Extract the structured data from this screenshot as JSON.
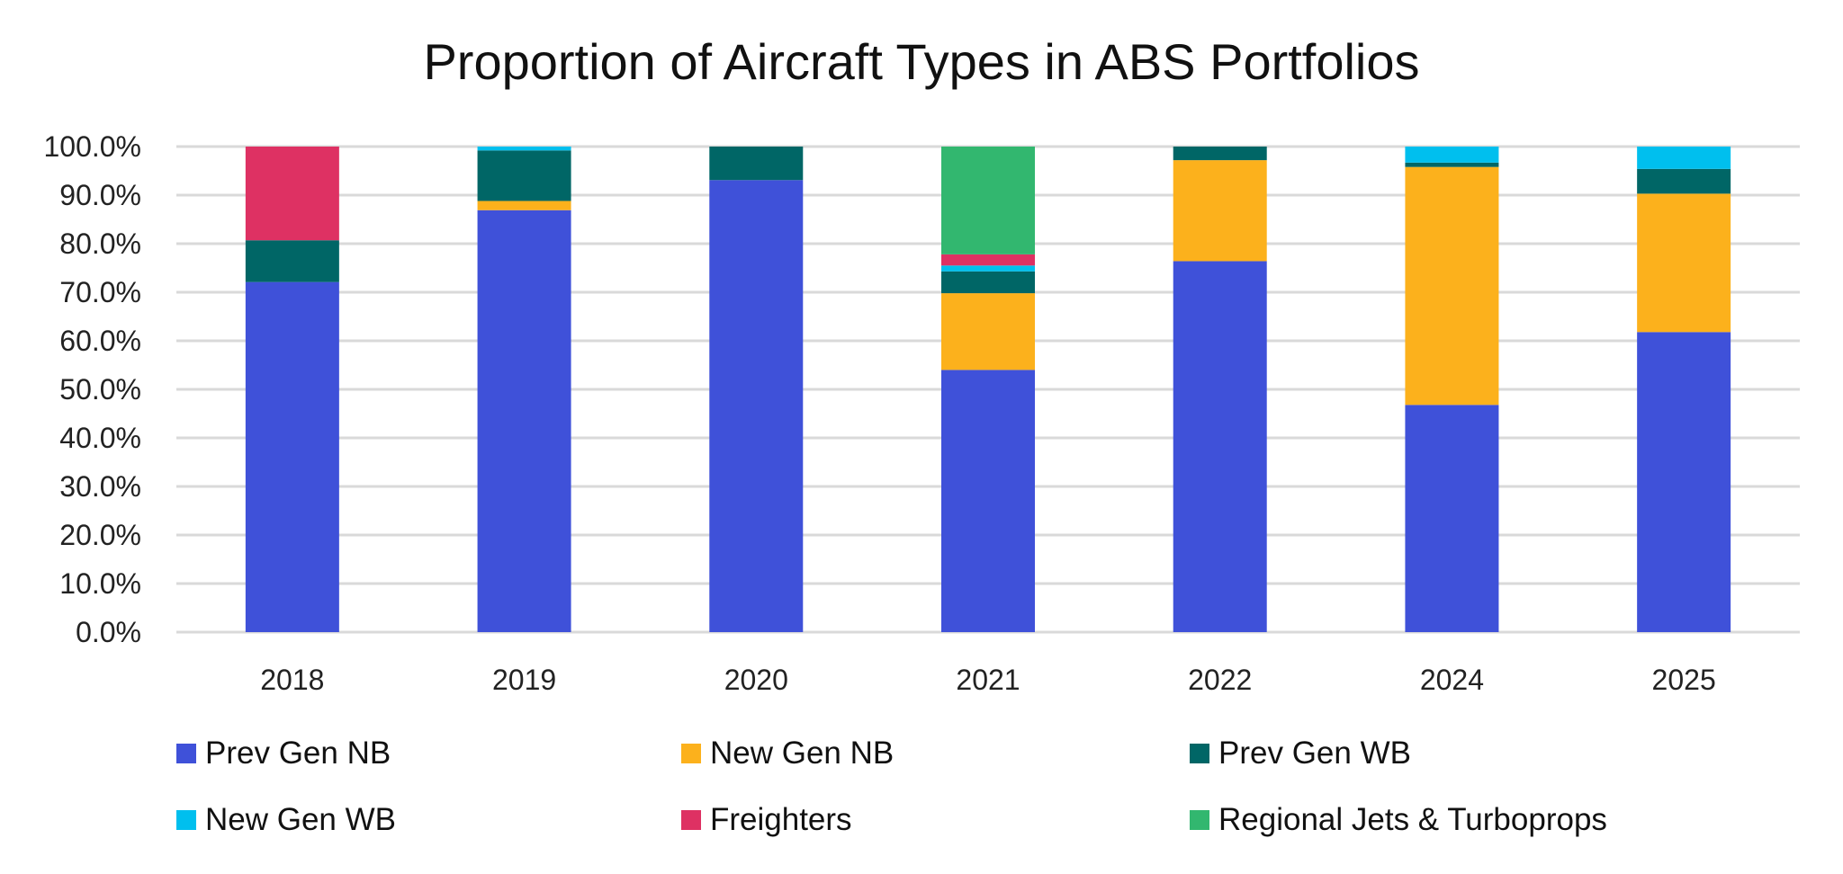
{
  "chart_data": {
    "type": "bar",
    "stacked": true,
    "title": "Proportion of Aircraft Types in ABS Portfolios",
    "xlabel": "",
    "ylabel": "",
    "ylim": [
      0,
      100
    ],
    "yticks": [
      "0.0%",
      "10.0%",
      "20.0%",
      "30.0%",
      "40.0%",
      "50.0%",
      "60.0%",
      "70.0%",
      "80.0%",
      "90.0%",
      "100.0%"
    ],
    "grid": true,
    "legend_position": "bottom",
    "categories": [
      "2018",
      "2019",
      "2020",
      "2021",
      "2022",
      "2024",
      "2025"
    ],
    "series": [
      {
        "name": "Prev Gen NB",
        "color": "#3F51D9",
        "values": [
          72.1,
          86.9,
          93.1,
          54.0,
          76.4,
          46.8,
          61.8
        ]
      },
      {
        "name": "New Gen NB",
        "color": "#FCB11C",
        "values": [
          0,
          1.9,
          0,
          15.8,
          20.8,
          49.0,
          28.5
        ]
      },
      {
        "name": "Prev Gen WB",
        "color": "#006666",
        "values": [
          8.6,
          10.4,
          6.9,
          4.5,
          2.8,
          0.9,
          5.1
        ]
      },
      {
        "name": "New Gen WB",
        "color": "#00BFEE",
        "values": [
          0,
          0.8,
          0,
          1.2,
          0,
          3.3,
          4.6
        ]
      },
      {
        "name": "Freighters",
        "color": "#DE3163",
        "values": [
          19.3,
          0,
          0,
          2.3,
          0,
          0,
          0
        ]
      },
      {
        "name": "Regional Jets & Turboprops",
        "color": "#32B76F",
        "values": [
          0,
          0,
          0,
          22.2,
          0,
          0,
          0
        ]
      }
    ]
  }
}
